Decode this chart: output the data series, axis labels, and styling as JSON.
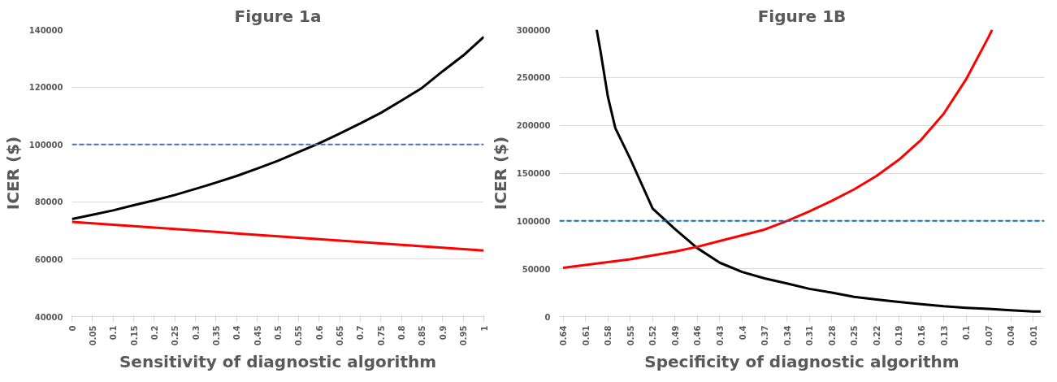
{
  "chart_data": [
    {
      "type": "line",
      "title": "Figure 1a",
      "xlabel": "Sensitivity of diagnostic algorithm",
      "ylabel": "ICER ($)",
      "xlim": [
        0,
        1
      ],
      "ylim": [
        40000,
        140000
      ],
      "xticks": [
        0,
        0.05,
        0.1,
        0.15,
        0.2,
        0.25,
        0.3,
        0.35,
        0.4,
        0.45,
        0.5,
        0.55,
        0.6,
        0.65,
        0.7,
        0.75,
        0.8,
        0.85,
        0.9,
        0.95,
        1
      ],
      "yticks": [
        40000,
        60000,
        80000,
        100000,
        120000,
        140000
      ],
      "grid": "y",
      "line_style": "solid",
      "marker": "none",
      "x": [
        0,
        0.05,
        0.1,
        0.15,
        0.2,
        0.25,
        0.3,
        0.35,
        0.4,
        0.45,
        0.5,
        0.55,
        0.6,
        0.65,
        0.7,
        0.75,
        0.8,
        0.85,
        0.9,
        0.95,
        1
      ],
      "series": [
        {
          "color": "#000000",
          "values": [
            74000,
            75500,
            77000,
            78800,
            80500,
            82400,
            84500,
            86700,
            89000,
            91600,
            94300,
            97300,
            100400,
            103800,
            107300,
            111000,
            115300,
            119700,
            125500,
            131000,
            137500
          ]
        },
        {
          "color": "#ff0000",
          "values": [
            73000,
            72500,
            72000,
            71500,
            71000,
            70500,
            70000,
            69500,
            69000,
            68500,
            68000,
            67500,
            67000,
            66500,
            66000,
            65500,
            65000,
            64500,
            64000,
            63500,
            63000
          ]
        }
      ],
      "ref_lines": [
        {
          "axis": "y",
          "value": 100000,
          "color": "#4472c4",
          "line_style": "dashed"
        }
      ]
    },
    {
      "type": "line",
      "title": "Figure 1B",
      "xlabel": "Specificity of diagnostic algorithm",
      "ylabel": "ICER ($)",
      "xlim": [
        0.645,
        -0.005
      ],
      "ylim": [
        0,
        300000
      ],
      "xticks": [
        0.64,
        0.61,
        0.58,
        0.55,
        0.52,
        0.49,
        0.46,
        0.43,
        0.4,
        0.37,
        0.34,
        0.31,
        0.28,
        0.25,
        0.22,
        0.19,
        0.16,
        0.13,
        0.1,
        0.07,
        0.04,
        0.01
      ],
      "yticks": [
        0,
        50000,
        100000,
        150000,
        200000,
        250000,
        300000
      ],
      "grid": "y",
      "line_style": "solid",
      "marker": "none",
      "series": [
        {
          "color": "#000000",
          "x": [
            0.595,
            0.59,
            0.58,
            0.57,
            0.55,
            0.52,
            0.49,
            0.46,
            0.43,
            0.4,
            0.37,
            0.34,
            0.31,
            0.28,
            0.25,
            0.22,
            0.19,
            0.16,
            0.13,
            0.1,
            0.07,
            0.04,
            0.01,
            0
          ],
          "values": [
            300000,
            278000,
            230000,
            197000,
            165000,
            113000,
            91500,
            71500,
            56300,
            46600,
            40000,
            34700,
            29000,
            25000,
            20600,
            17900,
            15200,
            13000,
            10800,
            9200,
            8100,
            6500,
            5400,
            5400
          ]
        },
        {
          "color": "#ff0000",
          "x": [
            0.64,
            0.61,
            0.58,
            0.55,
            0.52,
            0.49,
            0.46,
            0.43,
            0.4,
            0.37,
            0.34,
            0.31,
            0.28,
            0.25,
            0.22,
            0.19,
            0.16,
            0.13,
            0.1,
            0.07,
            0.065
          ],
          "values": [
            51000,
            54000,
            57000,
            60000,
            64000,
            68000,
            73000,
            79000,
            85000,
            91000,
            100000,
            110000,
            121000,
            133000,
            147000,
            164000,
            185000,
            212000,
            248000,
            292000,
            300000
          ]
        }
      ],
      "ref_lines": [
        {
          "axis": "y",
          "value": 100000,
          "color": "#0070c0",
          "line_style": "dashed"
        }
      ]
    }
  ]
}
